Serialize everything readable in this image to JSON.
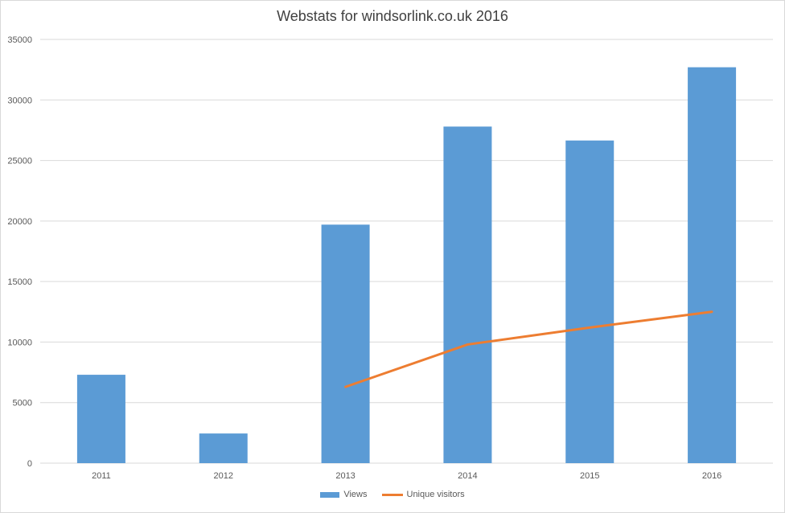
{
  "chart_data": {
    "type": "bar",
    "title": "Webstats for windsorlink.co.uk 2016",
    "categories": [
      "2011",
      "2012",
      "2013",
      "2014",
      "2015",
      "2016"
    ],
    "series": [
      {
        "name": "Views",
        "type": "bar",
        "values": [
          7300,
          2450,
          19700,
          27800,
          26650,
          32700
        ]
      },
      {
        "name": "Unique visitors",
        "type": "line",
        "values": [
          null,
          null,
          6300,
          9800,
          11200,
          12500
        ]
      }
    ],
    "ylim": [
      0,
      35000
    ],
    "yticks": [
      "0",
      "5000",
      "10000",
      "15000",
      "20000",
      "25000",
      "30000",
      "35000"
    ],
    "grid": true,
    "legend_position": "bottom",
    "colors": {
      "bar": "#5b9bd5",
      "line": "#ed7d31",
      "grid": "#d9d9d9",
      "text": "#595959"
    }
  }
}
